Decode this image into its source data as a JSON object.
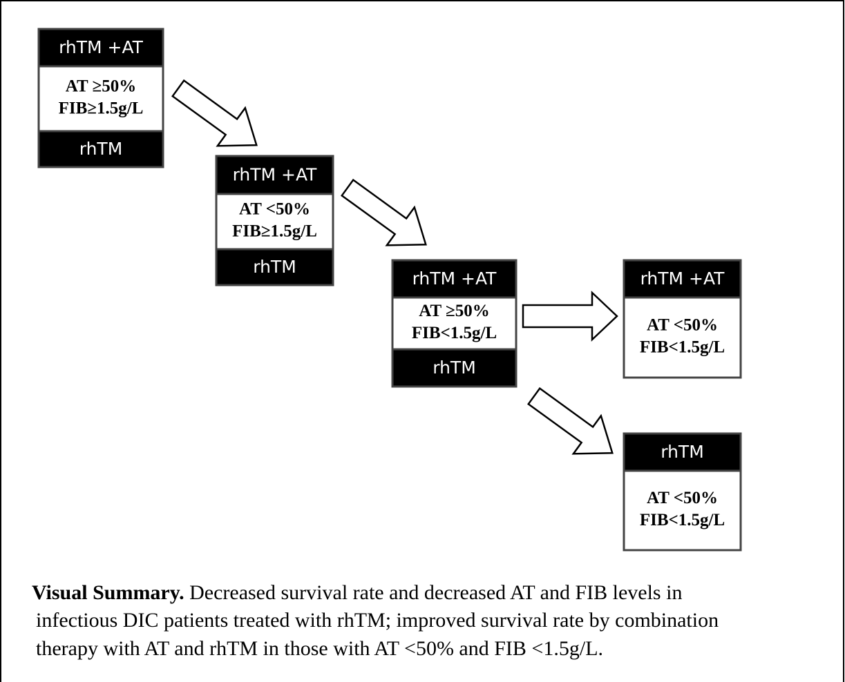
{
  "nodes": [
    {
      "top": "rhTM +AT",
      "lines": [
        "AT ≥50%",
        "FIB≥1.5g/L"
      ],
      "bottom": "rhTM"
    },
    {
      "top": "rhTM +AT",
      "lines": [
        "AT <50%",
        "FIB≥1.5g/L"
      ],
      "bottom": "rhTM"
    },
    {
      "top": "rhTM +AT",
      "lines": [
        "AT ≥50%",
        "FIB<1.5g/L"
      ],
      "bottom": "rhTM"
    },
    {
      "top": "rhTM +AT",
      "lines": [
        "AT <50%",
        "FIB<1.5g/L"
      ]
    },
    {
      "top": "rhTM",
      "lines": [
        "AT <50%",
        "FIB<1.5g/L"
      ]
    }
  ],
  "caption": {
    "lead": "Visual Summary.",
    "lines": [
      "Decreased survival rate and decreased AT and FIB levels in",
      "infectious DIC patients treated with rhTM; improved survival rate by combination",
      "therapy with AT and rhTM in those with AT <50% and FIB <1.5g/L."
    ]
  }
}
